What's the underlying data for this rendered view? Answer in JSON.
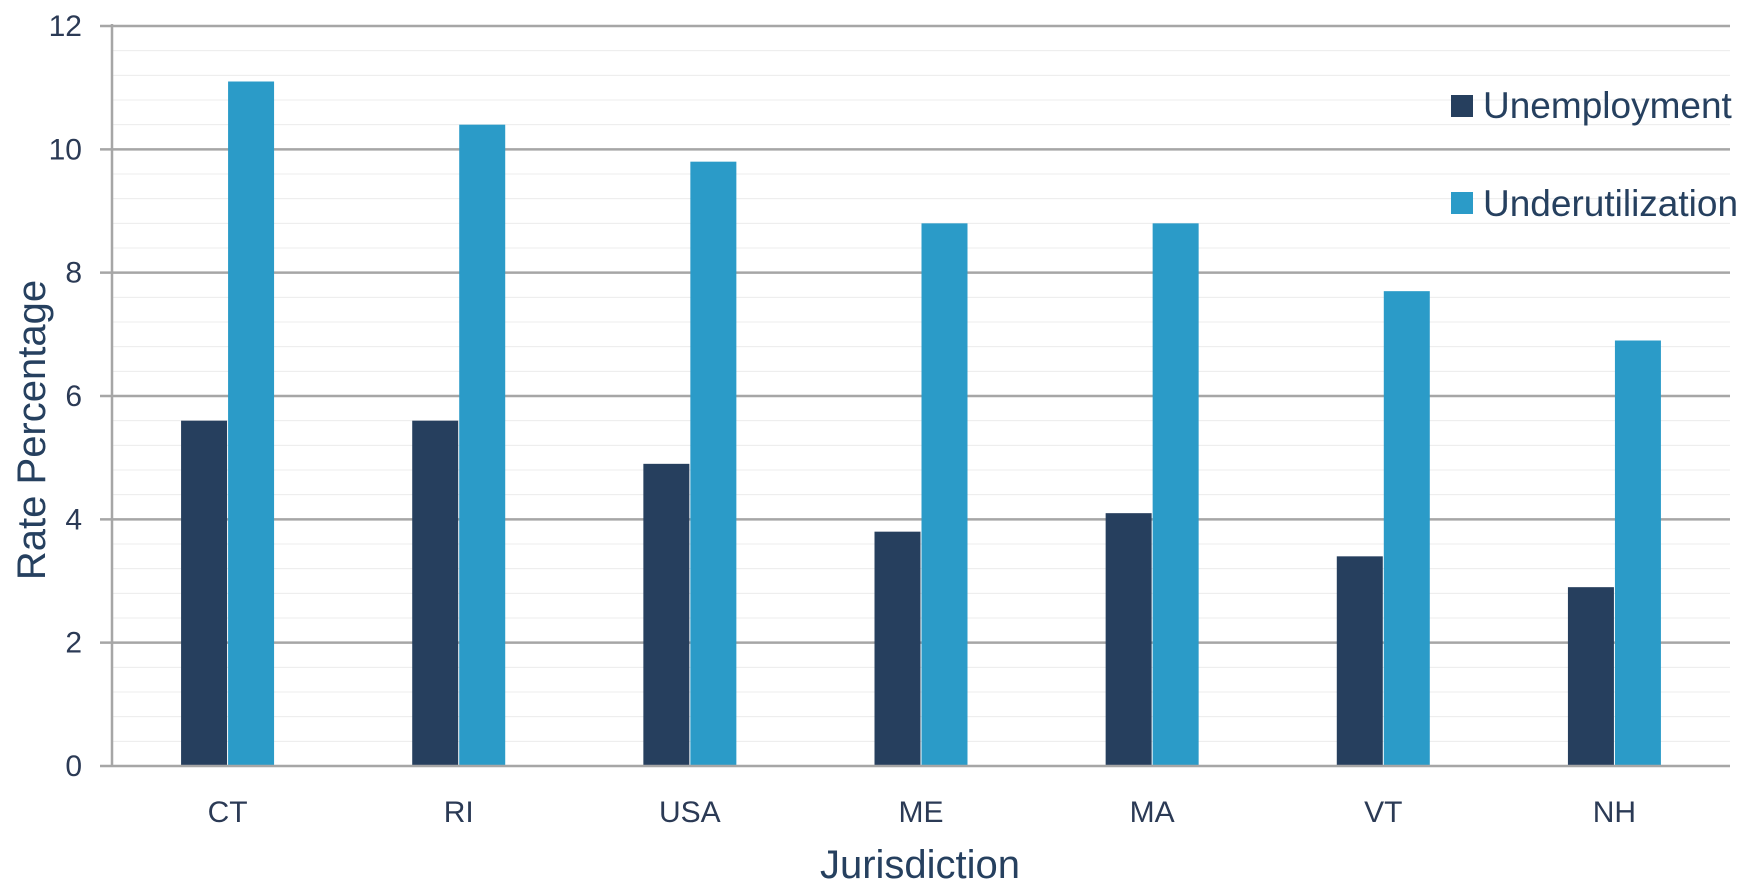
{
  "chart_data": {
    "type": "bar",
    "title": "",
    "xlabel": "Jurisdiction",
    "ylabel": "Rate Percentage",
    "ylim": [
      0,
      12
    ],
    "y_ticks": [
      0,
      2,
      4,
      6,
      8,
      10,
      12
    ],
    "y_tick_labels": [
      "0",
      "2",
      "4",
      "6",
      "8",
      "10",
      "12"
    ],
    "grid": true,
    "legend_position": "top-right",
    "categories": [
      "CT",
      "RI",
      "USA",
      "ME",
      "MA",
      "VT",
      "NH"
    ],
    "series": [
      {
        "name": "Unemployment",
        "color": "#263f5e",
        "values": [
          5.6,
          5.6,
          4.9,
          3.8,
          4.1,
          3.4,
          2.9
        ]
      },
      {
        "name": "Underutilization",
        "color": "#2b9bc8",
        "values": [
          11.1,
          10.4,
          9.8,
          8.8,
          8.8,
          7.7,
          6.9
        ]
      }
    ]
  }
}
